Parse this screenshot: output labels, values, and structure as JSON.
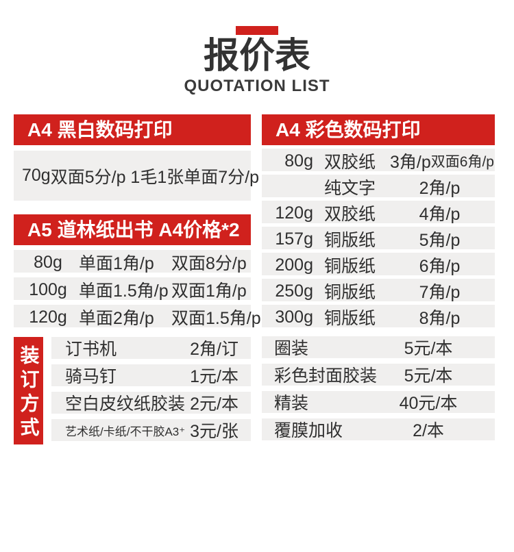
{
  "masthead": {
    "title": "报价表",
    "subtitle": "QUOTATION LIST"
  },
  "colors": {
    "accent_red": "#d0211d",
    "row_background": "#f0efee",
    "text": "#2f2f2f"
  },
  "left": {
    "bw": {
      "header": "A4 黑白数码打印",
      "row": {
        "weight": "70g",
        "duplex": "双面5分/p 1毛1张",
        "simplex": "单面7分/p"
      }
    },
    "a5": {
      "header": "A5 道林纸出书 A4价格*2",
      "rows": [
        {
          "weight": "80g",
          "single": "单面1角/p",
          "double": "双面8分/p"
        },
        {
          "weight": "100g",
          "single": "单面1.5角/p",
          "double": "双面1角/p"
        },
        {
          "weight": "120g",
          "single": "单面2角/p",
          "double": "双面1.5角/p"
        }
      ]
    },
    "binding": {
      "label": "装订方式",
      "rows": [
        {
          "name": "订书机",
          "price": "2角/订"
        },
        {
          "name": "骑马钉",
          "price": "1元/本"
        },
        {
          "name": "空白皮纹纸胶装",
          "price": "2元/本"
        },
        {
          "name": "艺术纸/卡纸/不干胶A3⁺",
          "price": "3元/张"
        }
      ]
    }
  },
  "right": {
    "color": {
      "header": "A4 彩色数码打印",
      "rows": [
        {
          "weight": "80g",
          "paper": "双胶纸",
          "price": "3角/p",
          "extra": "双面6角/p"
        },
        {
          "weight": "",
          "paper": "纯文字",
          "price": "2角/p",
          "extra": ""
        },
        {
          "weight": "120g",
          "paper": "双胶纸",
          "price": "4角/p",
          "extra": ""
        },
        {
          "weight": "157g",
          "paper": "铜版纸",
          "price": "5角/p",
          "extra": ""
        },
        {
          "weight": "200g",
          "paper": "铜版纸",
          "price": "6角/p",
          "extra": ""
        },
        {
          "weight": "250g",
          "paper": "铜版纸",
          "price": "7角/p",
          "extra": ""
        },
        {
          "weight": "300g",
          "paper": "铜版纸",
          "price": "8角/p",
          "extra": ""
        }
      ]
    },
    "finishing": {
      "rows": [
        {
          "name": "圈装",
          "price": "5元/本"
        },
        {
          "name": "彩色封面胶装",
          "price": "5元/本"
        },
        {
          "name": "精装",
          "price": "40元/本"
        },
        {
          "name": "覆膜加收",
          "price": "2/本"
        }
      ]
    }
  }
}
